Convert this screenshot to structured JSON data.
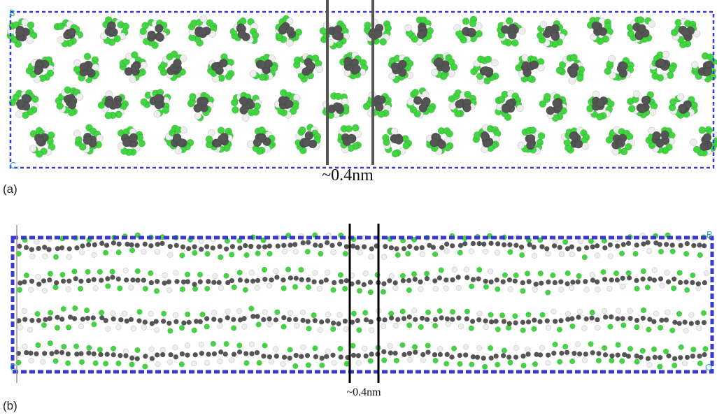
{
  "panel_a": {
    "label": "(a)",
    "gap_label": "~0.4nm",
    "corner_labels": [
      "B",
      "C"
    ]
  },
  "panel_b": {
    "label": "(b)",
    "gap_label": "~0.4nm",
    "corner_labels": [
      "B",
      "C",
      "O"
    ]
  }
}
